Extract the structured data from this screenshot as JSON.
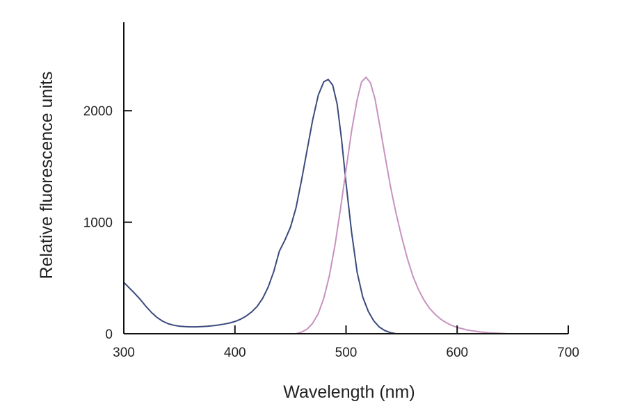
{
  "chart_data": {
    "type": "line",
    "title": "",
    "xlabel": "Wavelength (nm)",
    "ylabel": "Relative fluorescence units",
    "xlim": [
      300,
      700
    ],
    "ylim": [
      0,
      2650
    ],
    "x_ticks": [
      300,
      400,
      500,
      600,
      700
    ],
    "y_ticks": [
      0,
      1000,
      2000
    ],
    "grid": false,
    "series": [
      {
        "color": "#3b4a7c",
        "points": [
          [
            300,
            460
          ],
          [
            305,
            410
          ],
          [
            310,
            360
          ],
          [
            315,
            305
          ],
          [
            320,
            245
          ],
          [
            325,
            190
          ],
          [
            330,
            145
          ],
          [
            335,
            112
          ],
          [
            340,
            90
          ],
          [
            345,
            76
          ],
          [
            350,
            68
          ],
          [
            355,
            64
          ],
          [
            360,
            62
          ],
          [
            365,
            62
          ],
          [
            370,
            64
          ],
          [
            375,
            67
          ],
          [
            380,
            72
          ],
          [
            385,
            78
          ],
          [
            390,
            86
          ],
          [
            395,
            96
          ],
          [
            400,
            110
          ],
          [
            405,
            130
          ],
          [
            410,
            158
          ],
          [
            415,
            195
          ],
          [
            420,
            245
          ],
          [
            425,
            318
          ],
          [
            430,
            420
          ],
          [
            435,
            560
          ],
          [
            440,
            740
          ],
          [
            445,
            840
          ],
          [
            450,
            955
          ],
          [
            455,
            1130
          ],
          [
            460,
            1380
          ],
          [
            465,
            1650
          ],
          [
            470,
            1920
          ],
          [
            475,
            2140
          ],
          [
            480,
            2260
          ],
          [
            484,
            2280
          ],
          [
            488,
            2230
          ],
          [
            492,
            2060
          ],
          [
            496,
            1740
          ],
          [
            500,
            1350
          ],
          [
            505,
            910
          ],
          [
            510,
            550
          ],
          [
            515,
            330
          ],
          [
            520,
            200
          ],
          [
            525,
            115
          ],
          [
            530,
            60
          ],
          [
            535,
            28
          ],
          [
            540,
            10
          ],
          [
            545,
            0
          ]
        ]
      },
      {
        "color": "#c792bf",
        "points": [
          [
            455,
            0
          ],
          [
            460,
            15
          ],
          [
            465,
            42
          ],
          [
            470,
            95
          ],
          [
            475,
            180
          ],
          [
            480,
            320
          ],
          [
            485,
            520
          ],
          [
            490,
            790
          ],
          [
            495,
            1120
          ],
          [
            500,
            1470
          ],
          [
            505,
            1820
          ],
          [
            510,
            2100
          ],
          [
            514,
            2260
          ],
          [
            518,
            2300
          ],
          [
            522,
            2250
          ],
          [
            526,
            2110
          ],
          [
            530,
            1890
          ],
          [
            535,
            1600
          ],
          [
            540,
            1320
          ],
          [
            545,
            1080
          ],
          [
            550,
            870
          ],
          [
            555,
            680
          ],
          [
            560,
            520
          ],
          [
            565,
            400
          ],
          [
            570,
            305
          ],
          [
            575,
            230
          ],
          [
            580,
            175
          ],
          [
            585,
            132
          ],
          [
            590,
            100
          ],
          [
            595,
            75
          ],
          [
            600,
            56
          ],
          [
            610,
            32
          ],
          [
            620,
            17
          ],
          [
            630,
            8
          ],
          [
            640,
            3
          ],
          [
            645,
            0
          ]
        ]
      }
    ]
  }
}
